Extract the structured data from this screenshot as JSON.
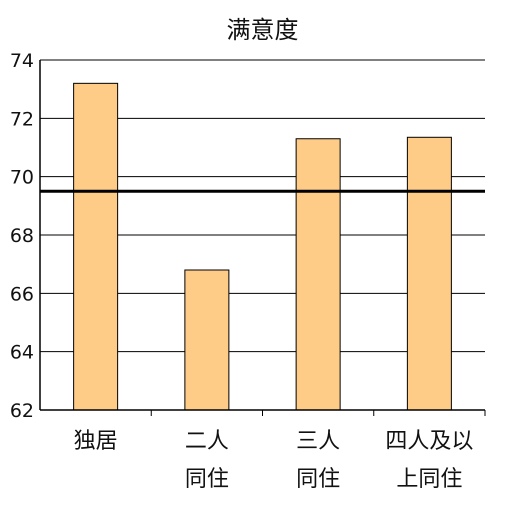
{
  "chart_data": {
    "type": "bar",
    "title": "满意度",
    "xlabel": "",
    "ylabel": "",
    "categories": [
      [
        "独居"
      ],
      [
        "二人",
        "同住"
      ],
      [
        "三人",
        "同住"
      ],
      [
        "四人及以",
        "上同住"
      ]
    ],
    "values": [
      73.2,
      66.8,
      71.3,
      71.35
    ],
    "ylim": [
      62,
      74
    ],
    "yticks": [
      62,
      64,
      66,
      68,
      70,
      72,
      74
    ],
    "reference_line": 69.5,
    "bar_color": "#FFCC88",
    "bar_edge_color": "#000000",
    "grid": true
  }
}
